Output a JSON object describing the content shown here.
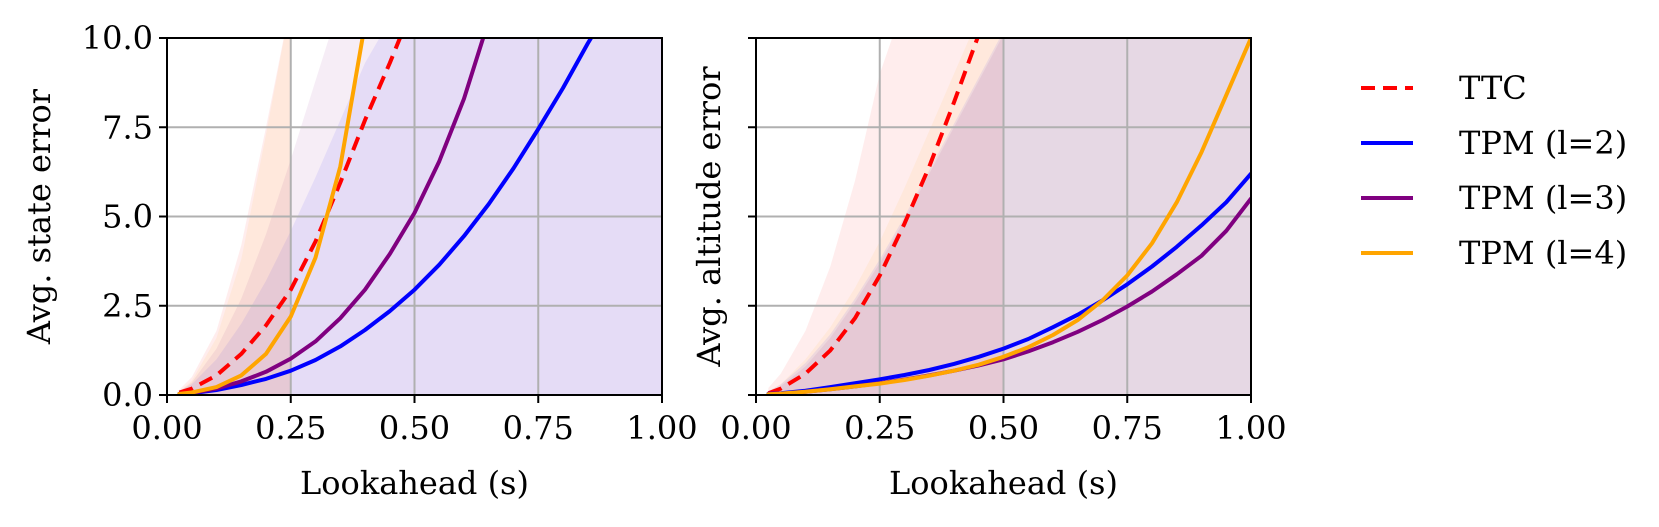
{
  "chart_data": [
    {
      "type": "line",
      "title": "",
      "xlabel": "Lookahead (s)",
      "ylabel": "Avg. state error",
      "xlim": [
        0,
        1
      ],
      "ylim": [
        0,
        10
      ],
      "xticks": [
        "0.00",
        "0.25",
        "0.50",
        "0.75",
        "1.00"
      ],
      "yticks": [
        "0.0",
        "2.5",
        "5.0",
        "7.5",
        "10.0"
      ],
      "grid": true,
      "x": [
        0.025,
        0.05,
        0.1,
        0.15,
        0.2,
        0.25,
        0.3,
        0.35,
        0.4,
        0.45,
        0.5,
        0.55,
        0.6,
        0.65,
        0.7,
        0.75,
        0.8,
        0.85,
        0.9,
        0.95,
        1.0
      ],
      "series": [
        {
          "name": "TTC",
          "color": "#ff0000",
          "dash": true,
          "values": [
            0.07,
            0.18,
            0.55,
            1.15,
            1.95,
            2.95,
            4.3,
            5.95,
            7.7,
            9.3,
            11.0,
            null,
            null,
            null,
            null,
            null,
            null,
            null,
            null,
            null,
            null
          ],
          "upper": [
            0.15,
            0.5,
            1.8,
            4.2,
            7.5,
            11.0,
            null,
            null,
            null,
            null,
            null,
            null,
            null,
            null,
            null,
            null,
            null,
            null,
            null,
            null,
            null
          ],
          "lower": [
            0.0,
            0.0,
            0.0,
            0.0,
            0.0,
            0.0,
            0.0,
            0.0,
            0.0,
            0.0,
            0.0,
            null,
            null,
            null,
            null,
            null,
            null,
            null,
            null,
            null,
            null
          ]
        },
        {
          "name": "TPM (l=2)",
          "color": "#0000ff",
          "dash": false,
          "values": [
            0.03,
            0.05,
            0.14,
            0.28,
            0.45,
            0.68,
            0.98,
            1.36,
            1.82,
            2.35,
            2.95,
            3.65,
            4.45,
            5.35,
            6.35,
            7.45,
            8.6,
            9.85,
            11.0,
            null,
            null
          ],
          "upper": [
            0.1,
            0.3,
            1.0,
            2.0,
            3.2,
            4.6,
            6.1,
            7.7,
            9.3,
            10.5,
            11.0,
            11.0,
            11.0,
            11.0,
            11.0,
            11.0,
            11.0,
            11.0,
            11.0,
            11.0,
            11.0
          ],
          "lower": [
            0.0,
            0.0,
            0.0,
            0.0,
            0.0,
            0.0,
            0.0,
            0.0,
            0.0,
            0.0,
            0.0,
            0.0,
            0.0,
            0.0,
            0.0,
            0.0,
            0.0,
            0.0,
            0.0,
            0.0,
            0.0
          ]
        },
        {
          "name": "TPM (l=3)",
          "color": "#800080",
          "dash": false,
          "values": [
            0.03,
            0.06,
            0.18,
            0.38,
            0.65,
            1.02,
            1.5,
            2.15,
            2.95,
            3.95,
            5.1,
            6.55,
            8.3,
            10.5,
            null,
            null,
            null,
            null,
            null,
            null,
            null
          ],
          "upper": [
            0.1,
            0.35,
            1.3,
            2.7,
            4.5,
            6.6,
            8.8,
            11.0,
            11.0,
            11.0,
            11.0,
            11.0,
            11.0,
            11.0,
            11.0,
            11.0,
            11.0,
            11.0,
            11.0,
            11.0,
            11.0
          ],
          "lower": [
            0.0,
            0.0,
            0.0,
            0.0,
            0.0,
            0.0,
            0.0,
            0.0,
            0.0,
            0.0,
            0.0,
            0.0,
            0.0,
            0.0,
            0.0,
            0.0,
            0.0,
            0.0,
            0.0,
            0.0,
            0.0
          ]
        },
        {
          "name": "TPM (l=4)",
          "color": "#ffa500",
          "dash": false,
          "values": [
            0.03,
            0.07,
            0.22,
            0.55,
            1.15,
            2.2,
            3.85,
            6.4,
            10.4,
            null,
            null,
            null,
            null,
            null,
            null,
            null,
            null,
            null,
            null,
            null,
            null
          ],
          "upper": [
            0.1,
            0.4,
            1.6,
            3.8,
            7.3,
            11.0,
            null,
            null,
            null,
            null,
            null,
            null,
            null,
            null,
            null,
            null,
            null,
            null,
            null,
            null,
            null
          ],
          "lower": [
            0.0,
            0.0,
            0.0,
            0.0,
            0.0,
            0.0,
            0.0,
            0.0,
            0.0,
            0.0,
            0.0,
            null,
            null,
            null,
            null,
            null,
            null,
            null,
            null,
            null,
            null
          ]
        }
      ]
    },
    {
      "type": "line",
      "title": "",
      "xlabel": "Lookahead (s)",
      "ylabel": "Avg. altitude error",
      "xlim": [
        0,
        1
      ],
      "ylim": [
        0,
        10
      ],
      "xticks": [
        "0.00",
        "0.25",
        "0.50",
        "0.75",
        "1.00"
      ],
      "yticks": [],
      "grid": true,
      "x": [
        0.025,
        0.05,
        0.1,
        0.15,
        0.2,
        0.25,
        0.3,
        0.35,
        0.4,
        0.45,
        0.5,
        0.55,
        0.6,
        0.65,
        0.7,
        0.75,
        0.8,
        0.85,
        0.9,
        0.95,
        1.0
      ],
      "series": [
        {
          "name": "TTC",
          "color": "#ff0000",
          "dash": true,
          "values": [
            0.05,
            0.18,
            0.6,
            1.25,
            2.15,
            3.35,
            4.8,
            6.4,
            8.2,
            10.1,
            11.0,
            null,
            null,
            null,
            null,
            null,
            null,
            null,
            null,
            null,
            null
          ],
          "upper": [
            0.2,
            0.6,
            1.8,
            3.6,
            6.0,
            9.0,
            11.0,
            11.0,
            11.0,
            11.0,
            11.0,
            null,
            null,
            null,
            null,
            null,
            null,
            null,
            null,
            null,
            null
          ],
          "lower": [
            0.0,
            0.0,
            0.0,
            0.0,
            0.0,
            0.0,
            0.0,
            0.0,
            0.0,
            0.0,
            0.0,
            null,
            null,
            null,
            null,
            null,
            null,
            null,
            null,
            null,
            null
          ]
        },
        {
          "name": "TPM (l=2)",
          "color": "#0000ff",
          "dash": false,
          "values": [
            0.03,
            0.05,
            0.12,
            0.22,
            0.33,
            0.44,
            0.56,
            0.7,
            0.87,
            1.07,
            1.3,
            1.57,
            1.9,
            2.25,
            2.65,
            3.1,
            3.6,
            4.15,
            4.75,
            5.4,
            6.2
          ],
          "upper": [
            0.1,
            0.3,
            0.9,
            1.7,
            2.7,
            3.8,
            5.0,
            6.3,
            7.6,
            8.9,
            10.2,
            11.0,
            11.0,
            11.0,
            11.0,
            11.0,
            11.0,
            11.0,
            11.0,
            11.0,
            11.0
          ],
          "lower": [
            0.0,
            0.0,
            0.0,
            0.0,
            0.0,
            0.0,
            0.0,
            0.0,
            0.0,
            0.0,
            0.0,
            0.0,
            0.0,
            0.0,
            0.0,
            0.0,
            0.0,
            0.0,
            0.0,
            0.0,
            0.0
          ]
        },
        {
          "name": "TPM (l=3)",
          "color": "#800080",
          "dash": false,
          "values": [
            0.02,
            0.04,
            0.09,
            0.16,
            0.24,
            0.33,
            0.43,
            0.55,
            0.68,
            0.83,
            1.0,
            1.22,
            1.48,
            1.77,
            2.1,
            2.48,
            2.9,
            3.38,
            3.9,
            4.6,
            5.5
          ],
          "upper": [
            0.08,
            0.25,
            0.8,
            1.6,
            2.6,
            3.7,
            4.9,
            6.2,
            7.5,
            8.8,
            10.1,
            11.0,
            11.0,
            11.0,
            11.0,
            11.0,
            11.0,
            11.0,
            11.0,
            11.0,
            11.0
          ],
          "lower": [
            0.0,
            0.0,
            0.0,
            0.0,
            0.0,
            0.0,
            0.0,
            0.0,
            0.0,
            0.0,
            0.0,
            0.0,
            0.0,
            0.0,
            0.0,
            0.0,
            0.0,
            0.0,
            0.0,
            0.0,
            0.0
          ]
        },
        {
          "name": "TPM (l=4)",
          "color": "#ffa500",
          "dash": false,
          "values": [
            0.02,
            0.04,
            0.09,
            0.16,
            0.24,
            0.32,
            0.42,
            0.54,
            0.68,
            0.85,
            1.07,
            1.34,
            1.68,
            2.1,
            2.65,
            3.35,
            4.25,
            5.4,
            6.8,
            8.4,
            10.0
          ],
          "upper": [
            0.1,
            0.3,
            1.0,
            1.9,
            3.0,
            4.3,
            5.8,
            7.4,
            9.0,
            10.6,
            11.0,
            11.0,
            11.0,
            11.0,
            11.0,
            11.0,
            11.0,
            11.0,
            11.0,
            11.0,
            11.0
          ],
          "lower": [
            0.0,
            0.0,
            0.0,
            0.0,
            0.0,
            0.0,
            0.0,
            0.0,
            0.0,
            0.0,
            0.0,
            0.0,
            0.0,
            0.0,
            0.0,
            0.0,
            0.0,
            0.0,
            0.0,
            0.0,
            0.0
          ]
        }
      ]
    }
  ],
  "legend": {
    "placement": "right",
    "entries": [
      {
        "label": "TTC",
        "color": "#ff0000",
        "dash": true
      },
      {
        "label": "TPM (l=2)",
        "color": "#0000ff",
        "dash": false
      },
      {
        "label": "TPM (l=3)",
        "color": "#800080",
        "dash": false
      },
      {
        "label": "TPM (l=4)",
        "color": "#ffa500",
        "dash": false
      }
    ]
  }
}
